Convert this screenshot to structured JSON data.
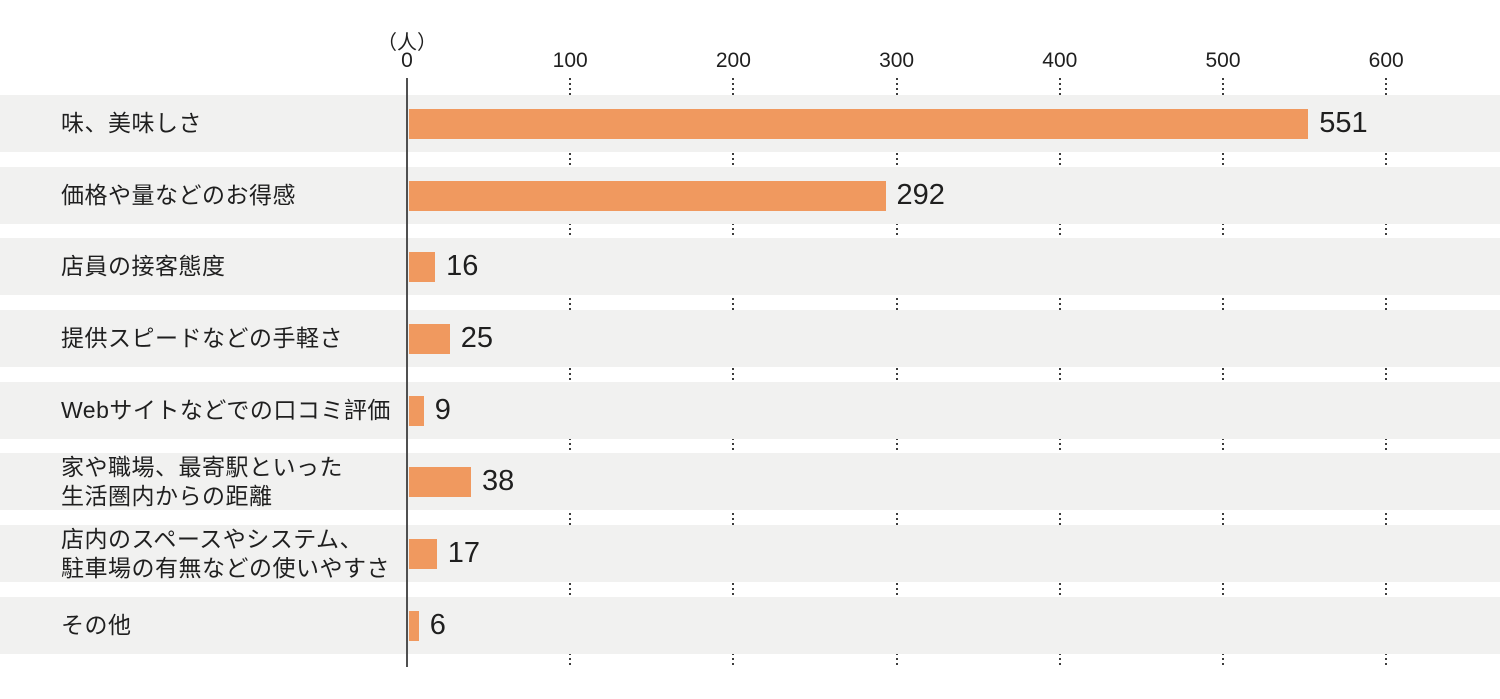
{
  "chart_data": {
    "type": "bar",
    "orientation": "horizontal",
    "title": "",
    "xlabel": "",
    "ylabel": "",
    "unit_label": "（人）",
    "x_ticks": [
      "0",
      "100",
      "200",
      "300",
      "400",
      "500",
      "600"
    ],
    "xlim": [
      0,
      670
    ],
    "grid": "dotted vertical gridlines at each tick, visible only in white gaps between row bands",
    "legend": "none",
    "categories": [
      "味、美味しさ",
      "価格や量などのお得感",
      "店員の接客態度",
      "提供スピードなどの手軽さ",
      "Webサイトなどでの口コミ評価",
      "家や職場、最寄駅といった\n生活圏内からの距離",
      "店内のスペースやシステム、\n駐車場の有無などの使いやすさ",
      "その他"
    ],
    "values": [
      551,
      292,
      16,
      25,
      9,
      38,
      17,
      6
    ],
    "colors": {
      "bar": "#F0995F",
      "row_background": "#F1F1F0",
      "text": "#1F1F1F",
      "axis_line": "#505050",
      "grid_dots": "#3C3C3C",
      "page_background": "#FFFFFF"
    }
  }
}
